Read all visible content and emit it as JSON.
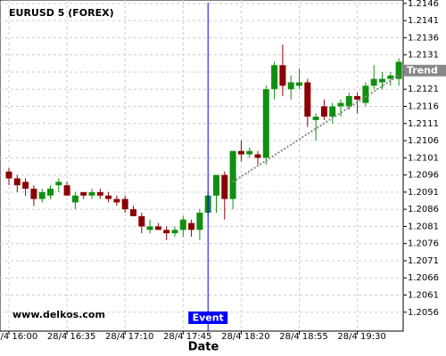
{
  "chart_data": {
    "type": "candlestick",
    "title": "EURUSD 5 (FOREX)",
    "x_label": "Date",
    "watermark": "www.delkos.com",
    "categories": [
      "28/4 16:00",
      null,
      null,
      null,
      null,
      null,
      null,
      "28/4 16:35",
      null,
      null,
      null,
      null,
      null,
      null,
      "28/4 17:10",
      null,
      null,
      null,
      null,
      null,
      null,
      "28/4 17:45",
      null,
      null,
      null,
      null,
      null,
      null,
      "28/4 18:20",
      null,
      null,
      null,
      null,
      null,
      null,
      "28/4 18:55",
      null,
      null,
      null,
      null,
      null,
      null,
      "28/4 19:30",
      null,
      null,
      null,
      null,
      null
    ],
    "open": [
      1.2097,
      1.2095,
      1.2094,
      1.2092,
      1.2089,
      1.209,
      1.2093,
      1.2093,
      1.2088,
      1.2091,
      1.209,
      1.2091,
      1.209,
      1.2089,
      1.2089,
      1.2086,
      1.2084,
      1.208,
      1.2081,
      1.208,
      1.2079,
      1.208,
      1.2082,
      1.208,
      1.2085,
      1.209,
      1.2096,
      1.2089,
      1.2103,
      1.2102,
      1.2102,
      1.2101,
      1.2121,
      1.2128,
      1.2121,
      1.2122,
      1.2123,
      1.2112,
      1.2116,
      1.2113,
      1.2116,
      1.2116,
      1.2119,
      1.2117,
      1.2122,
      1.2123,
      1.2124,
      1.2124
    ],
    "high": [
      1.2098,
      1.2096,
      1.2095,
      1.2093,
      1.2092,
      1.2093,
      1.2095,
      1.2094,
      1.2091,
      1.2091,
      1.2092,
      1.2092,
      1.2091,
      1.209,
      1.209,
      1.2087,
      1.2085,
      1.2083,
      1.2082,
      1.2081,
      1.2081,
      1.2084,
      1.2083,
      1.2086,
      1.2091,
      1.2096,
      1.2097,
      1.2103,
      1.2106,
      1.2104,
      1.2103,
      1.2122,
      1.2129,
      1.2134,
      1.2125,
      1.2127,
      1.2124,
      1.2114,
      1.2118,
      1.2117,
      1.2118,
      1.212,
      1.212,
      1.2123,
      1.2128,
      1.2126,
      1.2126,
      1.213
    ],
    "low": [
      1.2093,
      1.2091,
      1.209,
      1.2087,
      1.2088,
      1.2089,
      1.2091,
      1.209,
      1.2086,
      1.2089,
      1.2089,
      1.2089,
      1.2088,
      1.2087,
      1.2085,
      1.2084,
      1.2079,
      1.2079,
      1.208,
      1.2077,
      1.2078,
      1.2078,
      1.2078,
      1.2077,
      1.2084,
      1.2085,
      1.2083,
      1.2086,
      1.21,
      1.2101,
      1.2099,
      1.2099,
      1.2118,
      1.2119,
      1.2118,
      1.2121,
      1.211,
      1.2106,
      1.2112,
      1.2111,
      1.2113,
      1.2115,
      1.2114,
      1.2116,
      1.2121,
      1.2121,
      1.2122,
      1.2122
    ],
    "close": [
      1.2095,
      1.2093,
      1.2092,
      1.2089,
      1.2091,
      1.2092,
      1.2094,
      1.209,
      1.209,
      1.209,
      1.2091,
      1.209,
      1.2089,
      1.2088,
      1.2086,
      1.2084,
      1.2081,
      1.2081,
      1.208,
      1.2079,
      1.208,
      1.2083,
      1.208,
      1.2085,
      1.209,
      1.2096,
      1.2089,
      1.2103,
      1.2102,
      1.2103,
      1.2101,
      1.2121,
      1.2128,
      1.2122,
      1.2123,
      1.2123,
      1.2113,
      1.2113,
      1.2113,
      1.2116,
      1.2117,
      1.2119,
      1.2118,
      1.2122,
      1.2124,
      1.2124,
      1.2125,
      1.2129
    ],
    "up_color": "#109010",
    "down_color": "#8b0000",
    "ylim": [
      1.20505,
      1.2147
    ],
    "yticks": [
      1.2056,
      1.2061,
      1.2066,
      1.2071,
      1.2076,
      1.2081,
      1.2086,
      1.2091,
      1.2096,
      1.2101,
      1.2106,
      1.2111,
      1.2116,
      1.2121,
      1.2126,
      1.2131,
      1.2136,
      1.2141,
      1.2146
    ],
    "grid": true,
    "event": {
      "label": "Event",
      "index": 24,
      "color": "#0000ff"
    },
    "trend": {
      "label": "Trend",
      "start_index": 27,
      "start_value": 1.2094,
      "end_index": 47,
      "end_value": 1.2125,
      "color": "#888888"
    }
  }
}
